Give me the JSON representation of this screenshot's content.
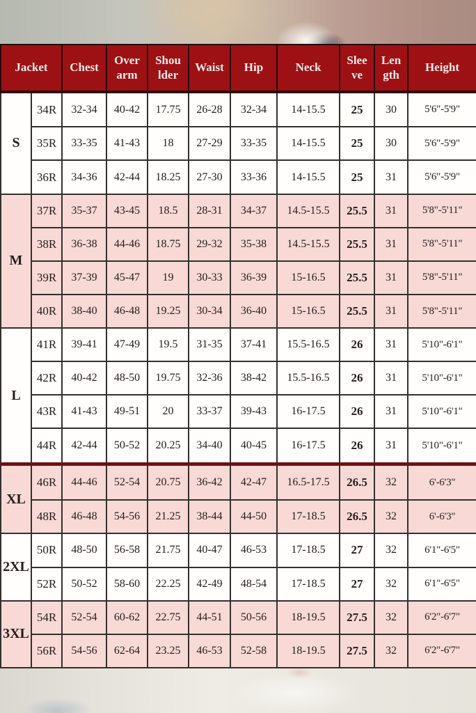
{
  "colors": {
    "header_bg": "#9d1115",
    "header_text": "#f6ece9",
    "row_pink": "#f8d9d6",
    "row_white": "#fffefc",
    "grid_line": "#33302c",
    "heavy_separator_red": "#701012",
    "body_text": "#241d1b"
  },
  "chart_data": {
    "type": "table",
    "columns": [
      "Jacket",
      "Chest",
      "Over arm",
      "Shou lder",
      "Waist",
      "Hip",
      "Neck",
      "Slee ve",
      "Len gth",
      "Height"
    ],
    "groups": [
      {
        "size": "S",
        "tone": "white",
        "rows": [
          [
            "34R",
            "32-34",
            "40-42",
            "17.75",
            "26-28",
            "32-34",
            "14-15.5",
            "25",
            "30",
            "5'6\"-5'9\""
          ],
          [
            "35R",
            "33-35",
            "41-43",
            "18",
            "27-29",
            "33-35",
            "14-15.5",
            "25",
            "30",
            "5'6\"-5'9\""
          ],
          [
            "36R",
            "34-36",
            "42-44",
            "18.25",
            "27-30",
            "33-36",
            "14-15.5",
            "25",
            "31",
            "5'6\"-5'9\""
          ]
        ]
      },
      {
        "size": "M",
        "tone": "pink",
        "rows": [
          [
            "37R",
            "35-37",
            "43-45",
            "18.5",
            "28-31",
            "34-37",
            "14.5-15.5",
            "25.5",
            "31",
            "5'8\"-5'11\""
          ],
          [
            "38R",
            "36-38",
            "44-46",
            "18.75",
            "29-32",
            "35-38",
            "14.5-15.5",
            "25.5",
            "31",
            "5'8\"-5'11\""
          ],
          [
            "39R",
            "37-39",
            "45-47",
            "19",
            "30-33",
            "36-39",
            "15-16.5",
            "25.5",
            "31",
            "5'8\"-5'11\""
          ],
          [
            "40R",
            "38-40",
            "46-48",
            "19.25",
            "30-34",
            "36-40",
            "15-16.5",
            "25.5",
            "31",
            "5'8\"-5'11\""
          ]
        ]
      },
      {
        "size": "L",
        "tone": "white",
        "rows": [
          [
            "41R",
            "39-41",
            "47-49",
            "19.5",
            "31-35",
            "37-41",
            "15.5-16.5",
            "26",
            "31",
            "5'10\"-6'1\""
          ],
          [
            "42R",
            "40-42",
            "48-50",
            "19.75",
            "32-36",
            "38-42",
            "15.5-16.5",
            "26",
            "31",
            "5'10\"-6'1\""
          ],
          [
            "43R",
            "41-43",
            "49-51",
            "20",
            "33-37",
            "39-43",
            "16-17.5",
            "26",
            "31",
            "5'10\"-6'1\""
          ],
          [
            "44R",
            "42-44",
            "50-52",
            "20.25",
            "34-40",
            "40-45",
            "16-17.5",
            "26",
            "31",
            "5'10\"-6'1\""
          ]
        ]
      },
      {
        "size": "XL",
        "tone": "pink",
        "rows": [
          [
            "46R",
            "44-46",
            "52-54",
            "20.75",
            "36-42",
            "42-47",
            "16.5-17.5",
            "26.5",
            "32",
            "6'-6'3\""
          ],
          [
            "48R",
            "46-48",
            "54-56",
            "21.25",
            "38-44",
            "44-50",
            "17-18.5",
            "26.5",
            "32",
            "6'-6'3\""
          ]
        ]
      },
      {
        "size": "2XL",
        "tone": "white",
        "rows": [
          [
            "50R",
            "48-50",
            "56-58",
            "21.75",
            "40-47",
            "46-53",
            "17-18.5",
            "27",
            "32",
            "6'1\"-6'5\""
          ],
          [
            "52R",
            "50-52",
            "58-60",
            "22.25",
            "42-49",
            "48-54",
            "17-18.5",
            "27",
            "32",
            "6'1\"-6'5\""
          ]
        ]
      },
      {
        "size": "3XL",
        "tone": "pink",
        "rows": [
          [
            "54R",
            "52-54",
            "60-62",
            "22.75",
            "44-51",
            "50-56",
            "18-19.5",
            "27.5",
            "32",
            "6'2\"-6'7\""
          ],
          [
            "56R",
            "54-56",
            "62-64",
            "23.25",
            "46-53",
            "52-58",
            "18-19.5",
            "27.5",
            "32",
            "6'2\"-6'7\""
          ]
        ]
      }
    ]
  }
}
